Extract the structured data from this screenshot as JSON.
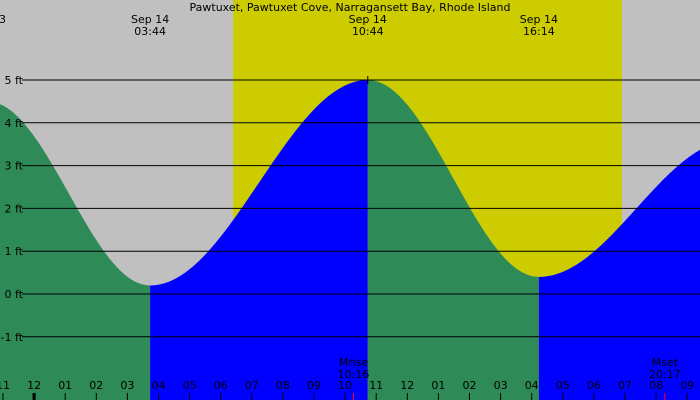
{
  "chart_data": {
    "type": "area",
    "title": "Pawtuxet, Pawtuxet Cove, Narragansett Bay, Rhode Island",
    "corner_label": "3",
    "ylim": [
      -1.6,
      6.7
    ],
    "y_ticks": [
      {
        "value": 5,
        "label": "5 ft"
      },
      {
        "value": 4,
        "label": "4 ft"
      },
      {
        "value": 3,
        "label": "3 ft"
      },
      {
        "value": 2,
        "label": "2 ft"
      },
      {
        "value": 1,
        "label": "1 ft"
      },
      {
        "value": 0,
        "label": "0 ft"
      },
      {
        "value": -1,
        "label": "-1 ft"
      }
    ],
    "x_range_hours": [
      -1,
      32
    ],
    "x_ticks": [
      {
        "hour": 11,
        "label": "11",
        "bold": false
      },
      {
        "hour": 12,
        "label": "12",
        "bold": true
      },
      {
        "hour": 13,
        "label": "01",
        "bold": false
      },
      {
        "hour": 14,
        "label": "02",
        "bold": false
      },
      {
        "hour": 15,
        "label": "03",
        "bold": false
      },
      {
        "hour": 16,
        "label": "04",
        "bold": false
      },
      {
        "hour": 17,
        "label": "05",
        "bold": false
      },
      {
        "hour": 18,
        "label": "06",
        "bold": false
      },
      {
        "hour": 19,
        "label": "07",
        "bold": false
      },
      {
        "hour": 20,
        "label": "08",
        "bold": false
      },
      {
        "hour": 21,
        "label": "09",
        "bold": false
      },
      {
        "hour": 22,
        "label": "10",
        "bold": false
      },
      {
        "hour": 23,
        "label": "11",
        "bold": false
      },
      {
        "hour": 24,
        "label": "12",
        "bold": false
      },
      {
        "hour": 25,
        "label": "01",
        "bold": false
      },
      {
        "hour": 26,
        "label": "02",
        "bold": false
      },
      {
        "hour": 27,
        "label": "03",
        "bold": false
      },
      {
        "hour": 28,
        "label": "04",
        "bold": false
      },
      {
        "hour": 29,
        "label": "05",
        "bold": false
      },
      {
        "hour": 30,
        "label": "06",
        "bold": false
      },
      {
        "hour": 31,
        "label": "07",
        "bold": false
      },
      {
        "hour": 32,
        "label": "08",
        "bold": false
      },
      {
        "hour": 33,
        "label": "09",
        "bold": false
      }
    ],
    "day_bands": [
      {
        "start_hour": 18.4,
        "end_hour": 30.9,
        "color": "#cccc00"
      }
    ],
    "tide_events": [
      {
        "type": "low",
        "date_label": "Sep 14",
        "time_label": "03:44",
        "hour": 15.73,
        "height": 0.2
      },
      {
        "type": "high",
        "date_label": "Sep 14",
        "time_label": "10:44",
        "hour": 22.73,
        "height": 5.0
      },
      {
        "type": "low",
        "date_label": "Sep 14",
        "time_label": "16:14",
        "hour": 28.23,
        "height": 0.4
      }
    ],
    "curve_anchors": [
      {
        "hour": 10.5,
        "height": 4.5
      },
      {
        "hour": 15.73,
        "height": 0.2
      },
      {
        "hour": 22.73,
        "height": 5.0
      },
      {
        "hour": 28.23,
        "height": 0.4
      },
      {
        "hour": 34.5,
        "height": 3.6
      }
    ],
    "moon_events": [
      {
        "label": "Mrise",
        "time": "10:16",
        "hour": 22.27
      },
      {
        "label": "Mset",
        "time": "20:17",
        "hour": 32.28
      }
    ],
    "colors": {
      "background": "#c0c0c0",
      "daylight": "#cccc00",
      "falling_tide": "#2e8b57",
      "rising_tide": "#0000ff",
      "gridline": "#000000",
      "moon_tick": "#ff0000"
    }
  }
}
